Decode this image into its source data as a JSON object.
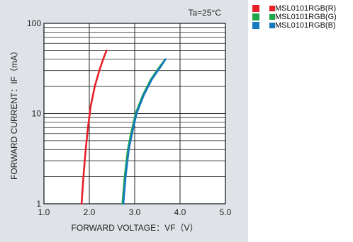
{
  "colors": {
    "panel_bg": "#dfe3e7",
    "plot_bg": "#ffffff",
    "grid": "#222222"
  },
  "chart_data": {
    "type": "line",
    "annotation": "Ta=25°C",
    "xlabel": "FORWARD VOLTAGE：VF（V）",
    "ylabel": "FORWARD CURRENT：IF（mA）",
    "xlim": [
      1.0,
      5.0
    ],
    "ylim": [
      1,
      100
    ],
    "yscale": "log",
    "grid": true,
    "legend_position": "outside-top-right",
    "x_tick_labels": [
      "1.0",
      "2.0",
      "3.0",
      "4.0",
      "5.0"
    ],
    "x_ticks": [
      1.0,
      2.0,
      3.0,
      4.0,
      5.0
    ],
    "y_tick_labels": [
      "1",
      "10",
      "100"
    ],
    "y_ticks": [
      1,
      10,
      100
    ],
    "series": [
      {
        "name": "MSL0101RGB(R)",
        "color": "#e8202a",
        "x": [
          1.83,
          1.87,
          1.92,
          1.97,
          2.03,
          2.12,
          2.22,
          2.32,
          2.38
        ],
        "y": [
          1,
          2,
          4,
          7,
          12,
          20,
          30,
          42,
          50
        ]
      },
      {
        "name": "MSL0101RGB(G)",
        "color": "#1fa84a",
        "x": [
          2.73,
          2.78,
          2.85,
          2.92,
          3.02,
          3.18,
          3.36,
          3.55,
          3.66
        ],
        "y": [
          1,
          2,
          4,
          6,
          10,
          16,
          24,
          33,
          39
        ]
      },
      {
        "name": "MSL0101RGB(B)",
        "color": "#1479bf",
        "x": [
          2.75,
          2.8,
          2.87,
          2.94,
          3.04,
          3.2,
          3.38,
          3.57,
          3.68
        ],
        "y": [
          1,
          2,
          4,
          6,
          10,
          16,
          24,
          33,
          40
        ]
      }
    ]
  }
}
